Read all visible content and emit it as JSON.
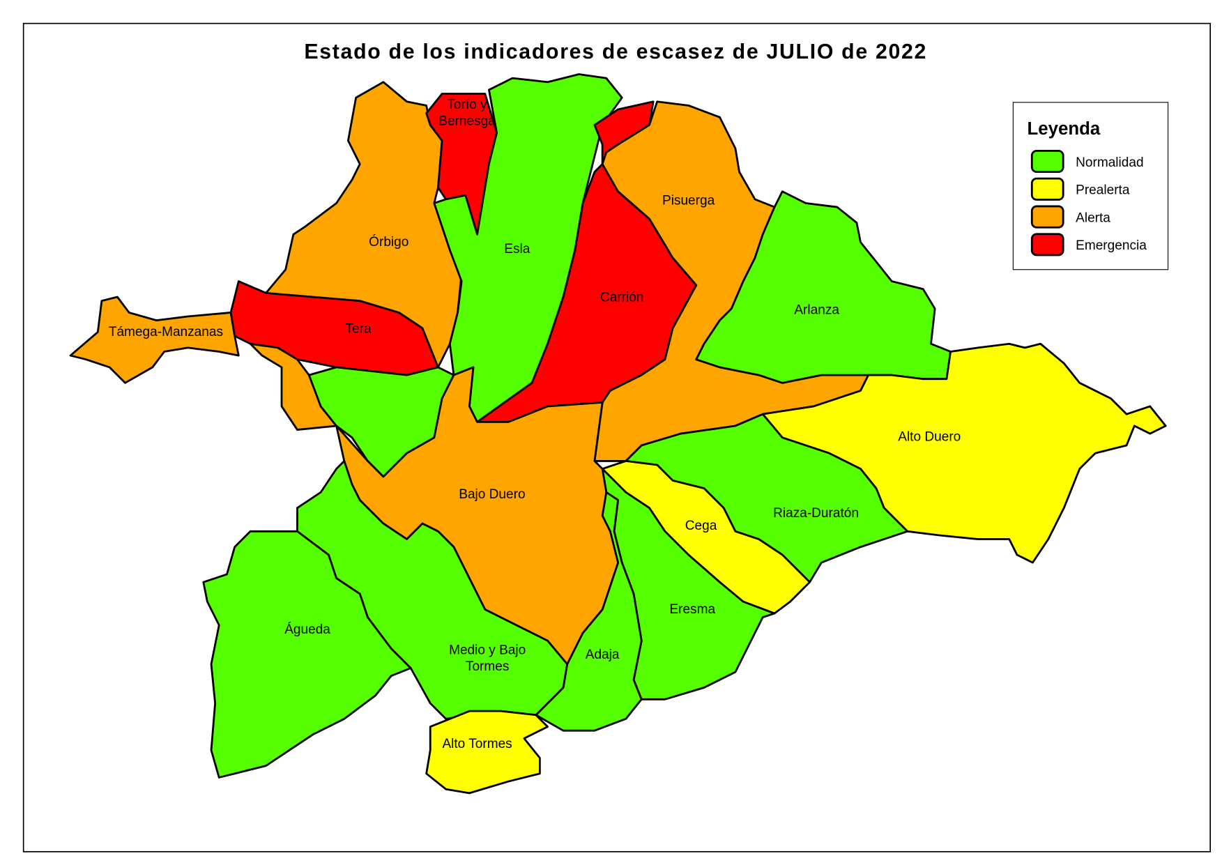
{
  "title": "Estado de los indicadores de escasez de JULIO de 2022",
  "legend": {
    "title": "Leyenda",
    "items": [
      {
        "label": "Normalidad",
        "color": "#55ff00"
      },
      {
        "label": "Prealerta",
        "color": "#ffff00"
      },
      {
        "label": "Alerta",
        "color": "#ffa500"
      },
      {
        "label": "Emergencia",
        "color": "#ff0000"
      }
    ]
  },
  "regions": [
    {
      "name": "Támega-Manzanas",
      "status": "Alerta"
    },
    {
      "name": "Tera",
      "status": "Emergencia"
    },
    {
      "name": "Órbigo",
      "status": "Alerta"
    },
    {
      "name": "Torío y Bernesga",
      "status": "Emergencia"
    },
    {
      "name": "Esla",
      "status": "Normalidad"
    },
    {
      "name": "Carrión",
      "status": "Emergencia"
    },
    {
      "name": "Pisuerga",
      "status": "Alerta"
    },
    {
      "name": "Arlanza",
      "status": "Normalidad"
    },
    {
      "name": "Alto Duero",
      "status": "Prealerta"
    },
    {
      "name": "Riaza-Duratón",
      "status": "Normalidad"
    },
    {
      "name": "Cega",
      "status": "Prealerta"
    },
    {
      "name": "Eresma",
      "status": "Normalidad"
    },
    {
      "name": "Adaja",
      "status": "Normalidad"
    },
    {
      "name": "Bajo Duero",
      "status": "Alerta"
    },
    {
      "name": "Medio y Bajo Tormes",
      "status": "Normalidad"
    },
    {
      "name": "Alto Tormes",
      "status": "Prealerta"
    },
    {
      "name": "Águeda",
      "status": "Normalidad"
    }
  ]
}
